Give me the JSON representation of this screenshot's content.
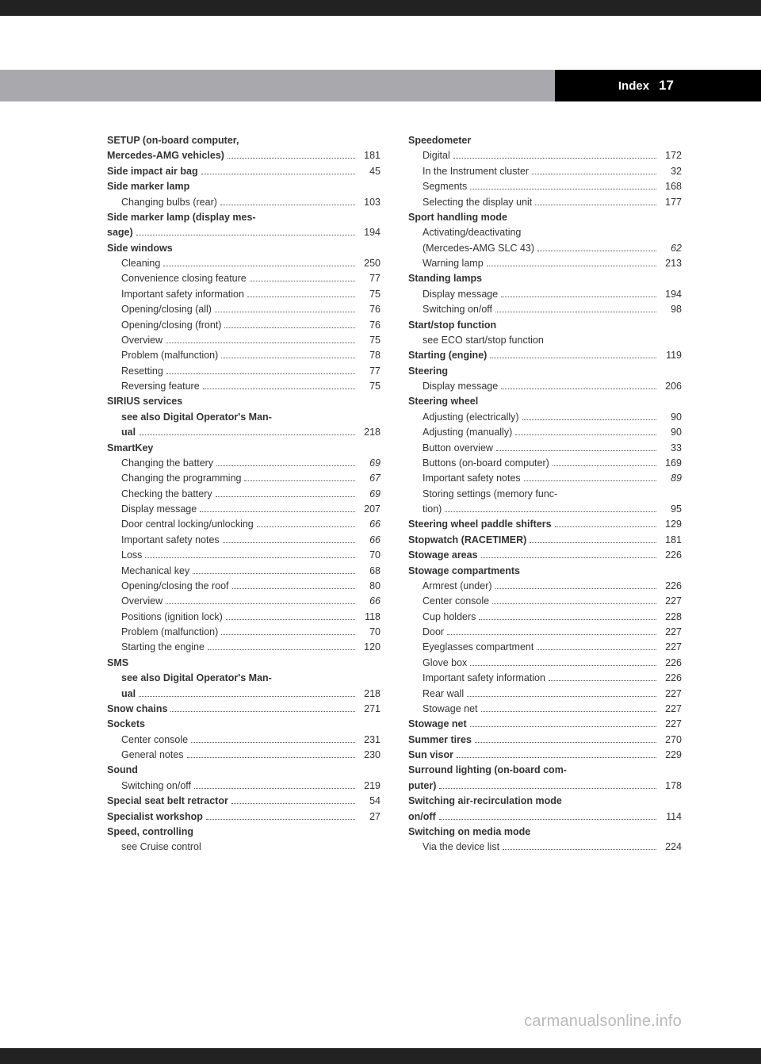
{
  "header": {
    "title": "Index",
    "page": "17"
  },
  "watermark": "carmanualsonline.info",
  "left": [
    {
      "t": "main",
      "lines": [
        "SETUP (on-board computer,",
        "Mercedes-AMG vehicles)"
      ],
      "pg": "181"
    },
    {
      "t": "main",
      "lines": [
        "Side impact air bag"
      ],
      "pg": "45"
    },
    {
      "t": "main",
      "lines": [
        "Side marker lamp"
      ]
    },
    {
      "t": "sub",
      "lines": [
        "Changing bulbs (rear)"
      ],
      "pg": "103"
    },
    {
      "t": "main",
      "lines": [
        "Side marker lamp (display mes-",
        "sage)"
      ],
      "pg": "194"
    },
    {
      "t": "main",
      "lines": [
        "Side windows"
      ]
    },
    {
      "t": "sub",
      "lines": [
        "Cleaning"
      ],
      "pg": "250"
    },
    {
      "t": "sub",
      "lines": [
        "Convenience closing feature"
      ],
      "pg": "77"
    },
    {
      "t": "sub",
      "lines": [
        "Important safety information"
      ],
      "pg": "75"
    },
    {
      "t": "sub",
      "lines": [
        "Opening/closing (all)"
      ],
      "pg": "76"
    },
    {
      "t": "sub",
      "lines": [
        "Opening/closing (front)"
      ],
      "pg": "76"
    },
    {
      "t": "sub",
      "lines": [
        "Overview"
      ],
      "pg": "75"
    },
    {
      "t": "sub",
      "lines": [
        "Problem (malfunction)"
      ],
      "pg": "78"
    },
    {
      "t": "sub",
      "lines": [
        "Resetting"
      ],
      "pg": "77"
    },
    {
      "t": "sub",
      "lines": [
        "Reversing feature"
      ],
      "pg": "75"
    },
    {
      "t": "main",
      "lines": [
        "SIRIUS services"
      ]
    },
    {
      "t": "sub-bold",
      "lines": [
        "see also Digital Operator's Man-",
        "ual"
      ],
      "pg": "218"
    },
    {
      "t": "main",
      "lines": [
        "SmartKey"
      ]
    },
    {
      "t": "sub",
      "lines": [
        "Changing the battery"
      ],
      "pg": "69",
      "italic": true
    },
    {
      "t": "sub",
      "lines": [
        "Changing the programming"
      ],
      "pg": "67",
      "italic": true
    },
    {
      "t": "sub",
      "lines": [
        "Checking the battery"
      ],
      "pg": "69",
      "italic": true
    },
    {
      "t": "sub",
      "lines": [
        "Display message"
      ],
      "pg": "207"
    },
    {
      "t": "sub",
      "lines": [
        "Door central locking/unlocking"
      ],
      "pg": "66",
      "italic": true
    },
    {
      "t": "sub",
      "lines": [
        "Important safety notes"
      ],
      "pg": "66",
      "italic": true
    },
    {
      "t": "sub",
      "lines": [
        "Loss"
      ],
      "pg": "70"
    },
    {
      "t": "sub",
      "lines": [
        "Mechanical key"
      ],
      "pg": "68"
    },
    {
      "t": "sub",
      "lines": [
        "Opening/closing the roof"
      ],
      "pg": "80"
    },
    {
      "t": "sub",
      "lines": [
        "Overview"
      ],
      "pg": "66",
      "italic": true
    },
    {
      "t": "sub",
      "lines": [
        "Positions (ignition lock)"
      ],
      "pg": "118"
    },
    {
      "t": "sub",
      "lines": [
        "Problem (malfunction)"
      ],
      "pg": "70"
    },
    {
      "t": "sub",
      "lines": [
        "Starting the engine"
      ],
      "pg": "120"
    },
    {
      "t": "main",
      "lines": [
        "SMS"
      ]
    },
    {
      "t": "sub-bold",
      "lines": [
        "see also Digital Operator's Man-",
        "ual"
      ],
      "pg": "218"
    },
    {
      "t": "main",
      "lines": [
        "Snow chains"
      ],
      "pg": "271"
    },
    {
      "t": "main",
      "lines": [
        "Sockets"
      ]
    },
    {
      "t": "sub",
      "lines": [
        "Center console"
      ],
      "pg": "231"
    },
    {
      "t": "sub",
      "lines": [
        "General notes"
      ],
      "pg": "230"
    },
    {
      "t": "main",
      "lines": [
        "Sound"
      ]
    },
    {
      "t": "sub",
      "lines": [
        "Switching on/off"
      ],
      "pg": "219"
    },
    {
      "t": "main",
      "lines": [
        "Special seat belt retractor"
      ],
      "pg": "54"
    },
    {
      "t": "main",
      "lines": [
        "Specialist workshop"
      ],
      "pg": "27"
    },
    {
      "t": "main",
      "lines": [
        "Speed, controlling"
      ]
    },
    {
      "t": "see",
      "lines": [
        "see Cruise control"
      ]
    }
  ],
  "right": [
    {
      "t": "main",
      "lines": [
        "Speedometer"
      ]
    },
    {
      "t": "sub",
      "lines": [
        "Digital"
      ],
      "pg": "172"
    },
    {
      "t": "sub",
      "lines": [
        "In the Instrument cluster"
      ],
      "pg": "32"
    },
    {
      "t": "sub",
      "lines": [
        "Segments"
      ],
      "pg": "168"
    },
    {
      "t": "sub",
      "lines": [
        "Selecting the display unit"
      ],
      "pg": "177"
    },
    {
      "t": "main",
      "lines": [
        "Sport handling mode"
      ]
    },
    {
      "t": "sub",
      "lines": [
        "Activating/deactivating",
        "(Mercedes-AMG SLC 43)"
      ],
      "pg": "62",
      "italic": true
    },
    {
      "t": "sub",
      "lines": [
        "Warning lamp"
      ],
      "pg": "213"
    },
    {
      "t": "main",
      "lines": [
        "Standing lamps"
      ]
    },
    {
      "t": "sub",
      "lines": [
        "Display message"
      ],
      "pg": "194"
    },
    {
      "t": "sub",
      "lines": [
        "Switching on/off"
      ],
      "pg": "98"
    },
    {
      "t": "main",
      "lines": [
        "Start/stop function"
      ]
    },
    {
      "t": "see",
      "lines": [
        "see ECO start/stop function"
      ]
    },
    {
      "t": "main",
      "lines": [
        "Starting (engine)"
      ],
      "pg": "119"
    },
    {
      "t": "main",
      "lines": [
        "Steering"
      ]
    },
    {
      "t": "sub",
      "lines": [
        "Display message"
      ],
      "pg": "206"
    },
    {
      "t": "main",
      "lines": [
        "Steering wheel"
      ]
    },
    {
      "t": "sub",
      "lines": [
        "Adjusting (electrically)"
      ],
      "pg": "90"
    },
    {
      "t": "sub",
      "lines": [
        "Adjusting (manually)"
      ],
      "pg": "90"
    },
    {
      "t": "sub",
      "lines": [
        "Button overview"
      ],
      "pg": "33"
    },
    {
      "t": "sub",
      "lines": [
        "Buttons (on-board computer)"
      ],
      "pg": "169"
    },
    {
      "t": "sub",
      "lines": [
        "Important safety notes"
      ],
      "pg": "89",
      "italic": true
    },
    {
      "t": "sub",
      "lines": [
        "Storing settings (memory func-",
        "tion)"
      ],
      "pg": "95"
    },
    {
      "t": "main",
      "lines": [
        "Steering wheel paddle shifters"
      ],
      "pg": "129"
    },
    {
      "t": "main",
      "lines": [
        "Stopwatch (RACETIMER)"
      ],
      "pg": "181"
    },
    {
      "t": "main",
      "lines": [
        "Stowage areas"
      ],
      "pg": "226"
    },
    {
      "t": "main",
      "lines": [
        "Stowage compartments"
      ]
    },
    {
      "t": "sub",
      "lines": [
        "Armrest (under)"
      ],
      "pg": "226"
    },
    {
      "t": "sub",
      "lines": [
        "Center console"
      ],
      "pg": "227"
    },
    {
      "t": "sub",
      "lines": [
        "Cup holders"
      ],
      "pg": "228"
    },
    {
      "t": "sub",
      "lines": [
        "Door"
      ],
      "pg": "227"
    },
    {
      "t": "sub",
      "lines": [
        "Eyeglasses compartment"
      ],
      "pg": "227"
    },
    {
      "t": "sub",
      "lines": [
        "Glove box"
      ],
      "pg": "226"
    },
    {
      "t": "sub",
      "lines": [
        "Important safety information"
      ],
      "pg": "226"
    },
    {
      "t": "sub",
      "lines": [
        "Rear wall"
      ],
      "pg": "227"
    },
    {
      "t": "sub",
      "lines": [
        "Stowage net"
      ],
      "pg": "227"
    },
    {
      "t": "main",
      "lines": [
        "Stowage net"
      ],
      "pg": "227"
    },
    {
      "t": "main",
      "lines": [
        "Summer tires"
      ],
      "pg": "270"
    },
    {
      "t": "main",
      "lines": [
        "Sun visor"
      ],
      "pg": "229"
    },
    {
      "t": "main",
      "lines": [
        "Surround lighting (on-board com-",
        "puter)"
      ],
      "pg": "178"
    },
    {
      "t": "main",
      "lines": [
        "Switching air-recirculation mode",
        "on/off"
      ],
      "pg": "114"
    },
    {
      "t": "main",
      "lines": [
        "Switching on media mode"
      ]
    },
    {
      "t": "sub",
      "lines": [
        "Via the device list"
      ],
      "pg": "224"
    }
  ]
}
